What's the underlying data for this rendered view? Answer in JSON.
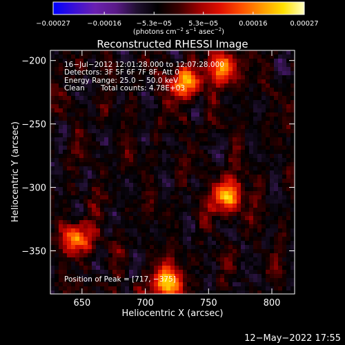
{
  "chart_data": {
    "type": "heatmap",
    "title": "Reconstructed RHESSI Image",
    "xlabel": "Heliocentric X (arcsec)",
    "ylabel": "Heliocentric Y (arcsec)",
    "xlim": [
      625,
      818
    ],
    "ylim": [
      -384,
      -192
    ],
    "x_ticks": [
      650,
      700,
      750,
      800
    ],
    "x_tick_labels": [
      "650",
      "700",
      "750",
      "800"
    ],
    "y_ticks": [
      -200,
      -250,
      -300,
      -350
    ],
    "y_tick_labels": [
      "−200",
      "−250",
      "−300",
      "−350"
    ],
    "colorbar": {
      "min": -0.00027,
      "max": 0.00027,
      "ticks": [
        -0.00027,
        -0.00016,
        -5.3e-05,
        5.3e-05,
        0.00016,
        0.00027
      ],
      "tick_labels": [
        "−0.00027",
        "−0.00016",
        "−5.3e−05",
        "5.3e−05",
        "0.00016",
        "0.00027"
      ],
      "units_prefix": "(photons cm",
      "units_exp1": "−2",
      "units_mid": " s",
      "units_exp2": "−1",
      "units_mid2": " asec",
      "units_exp3": "−2",
      "units_suffix": ")",
      "colors": [
        "#0000ff",
        "#3a10d8",
        "#6a20b0",
        "#5a1a88",
        "#201030",
        "#000000",
        "#3a0000",
        "#a00000",
        "#e01000",
        "#ff5000",
        "#ff9a00",
        "#ffe000",
        "#ffffc0"
      ]
    },
    "annotations": {
      "time_range": "16−Jul−2012 12:01:28.000 to 12:07:28.000",
      "detectors": "Detectors: 3F 5F 6F 7F 8F, Att 0",
      "energy_range": "Energy Range: 25.0 − 50.0 keV",
      "method": "Clean",
      "total_counts": "Total counts: 4.78E+03",
      "peak": "Position of Peak = [717, −375]"
    },
    "peak_position": [
      717,
      -375
    ],
    "bright_sources": [
      {
        "x": 717,
        "y": -375,
        "amplitude": 0.00027
      },
      {
        "x": 765,
        "y": -307,
        "amplitude": 0.00025
      },
      {
        "x": 732,
        "y": -218,
        "amplitude": 0.00023
      },
      {
        "x": 762,
        "y": -205,
        "amplitude": 0.00022
      },
      {
        "x": 647,
        "y": -340,
        "amplitude": 0.0002
      }
    ],
    "footer_timestamp": "12−May−2022 17:55"
  }
}
